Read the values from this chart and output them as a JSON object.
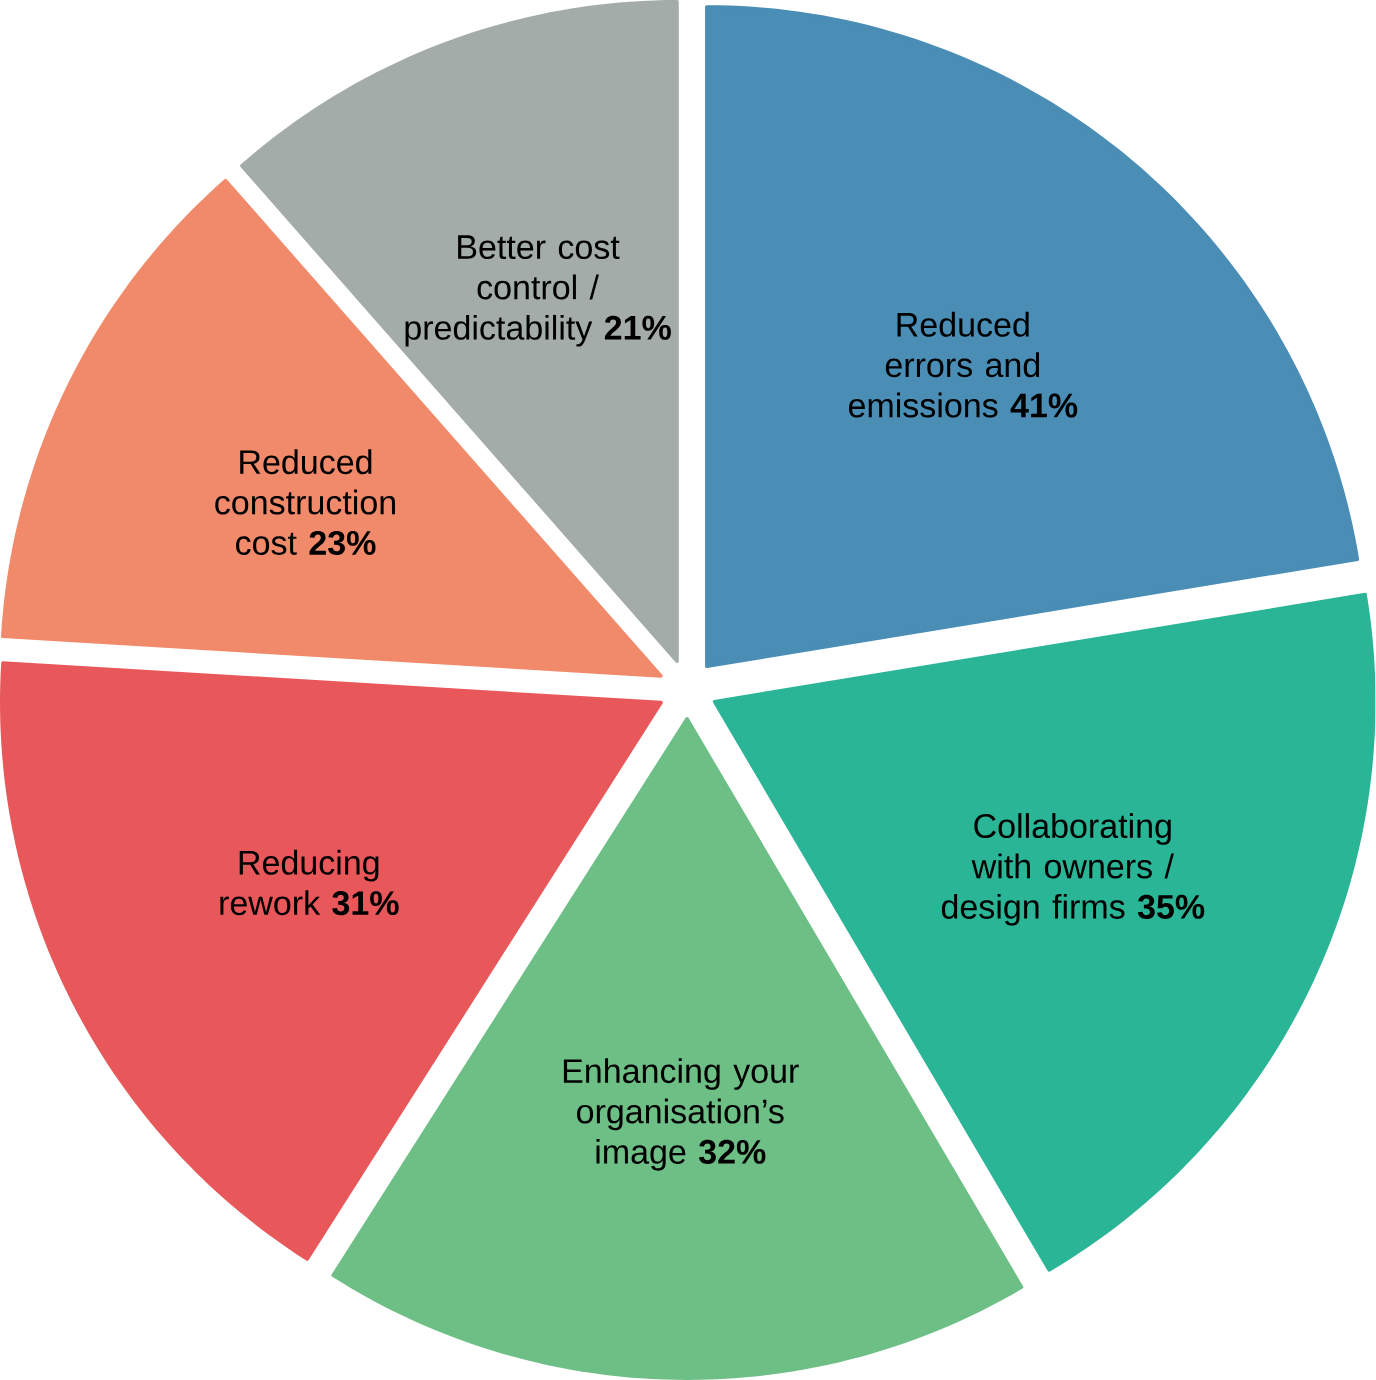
{
  "chart_data": {
    "type": "pie",
    "categories": [
      "Reduced errors and emissions",
      "Collaborating with owners / design firms",
      "Enhancing your organisation’s image",
      "Reducing rework",
      "Reduced construction cost",
      "Better cost control / predictability"
    ],
    "values": [
      41,
      35,
      32,
      31,
      23,
      21
    ],
    "value_labels": [
      "41%",
      "35%",
      "32%",
      "31%",
      "23%",
      "21%"
    ],
    "colors": [
      "#4a8db5",
      "#2ab597",
      "#6dbf86",
      "#e8585a",
      "#f08a6a",
      "#a3aca8"
    ]
  }
}
